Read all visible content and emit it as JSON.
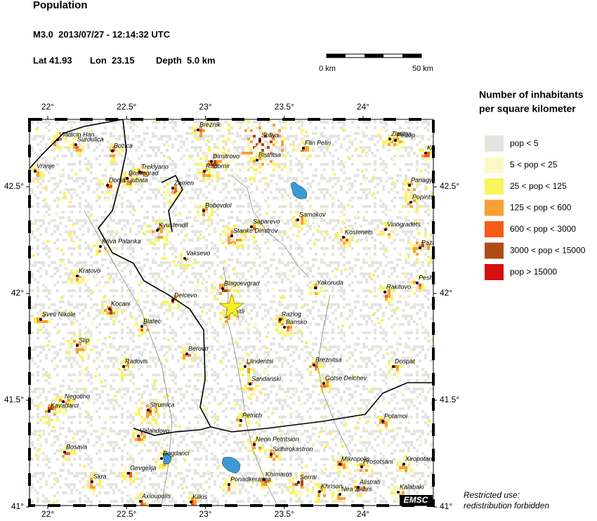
{
  "header": {
    "title": "Population",
    "event": "M3.0  2013/07/27 - 12:14:32 UTC",
    "lat": "Lat 41.93",
    "lon": "Lon  23.15",
    "depth": "Depth  5.0 km"
  },
  "scale_bar": {
    "start": "0 km",
    "end": "50 km"
  },
  "map": {
    "lon_ticks": [
      {
        "value": 22,
        "label": "22°"
      },
      {
        "value": 22.5,
        "label": "22.5°"
      },
      {
        "value": 23,
        "label": "23°"
      },
      {
        "value": 23.5,
        "label": "23.5°"
      },
      {
        "value": 24,
        "label": "24°"
      }
    ],
    "lat_ticks": [
      {
        "value": 42.5,
        "label": "42.5°"
      },
      {
        "value": 42,
        "label": "42°"
      },
      {
        "value": 41.5,
        "label": "41.5°"
      },
      {
        "value": 41,
        "label": "41°"
      }
    ],
    "cities": [
      "Vladicin Han",
      "Surdulica",
      "Bozica",
      "Vranje",
      "Treklyano",
      "Bosilegrad",
      "Donja Ljubata",
      "Zemen",
      "Breznik",
      "Sofiya",
      "Flin Pelin",
      "Zlatitsa",
      "Pirdop",
      "Koprivshtitsa",
      "Dimitrovo",
      "Radomir",
      "Bistritsa",
      "Panagyurishte",
      "Popintsi",
      "Bobovdol",
      "Samokov",
      "Saparevo",
      "Vinogradets",
      "Kyustendil",
      "Stanke Dimitrov",
      "Kostenets",
      "Pazardzhik",
      "Kriva Palanka",
      "Vaksevo",
      "Kratovo",
      "Peshtera",
      "Blagoevgrad",
      "Yakoruda",
      "Rakitovo",
      "Delcevo",
      "Kocani",
      "Sveti Nikole",
      "Simitli",
      "Razlog",
      "Bansko",
      "Blatec",
      "Stip",
      "Berovo",
      "Breznitsa",
      "Llindentsi",
      "Radovis",
      "Dospat",
      "Sandanski",
      "Gotse Delchev",
      "Negotino",
      "Kavadarci",
      "Strumica",
      "Petrich",
      "Potamoi",
      "Valandovo",
      "Neon Petritsion",
      "Sidhirokastron",
      "Bosava",
      "Bogdanci",
      "Mikropolis",
      "Prosotsani",
      "Xiropotamos",
      "Gevgelija",
      "Skra",
      "Khimaros",
      "Ponadkerasea",
      "Serrai",
      "Alistrati",
      "Khrison",
      "Nea Zikhni",
      "Kalabaki",
      "Axioupolis",
      "Kilkis"
    ],
    "logo": "EMSC"
  },
  "legend": {
    "title": [
      "Number of inhabitants",
      "per square kilometer"
    ],
    "entries": [
      {
        "label": "pop < 5",
        "color": "#e4e4e0"
      },
      {
        "label": "5 < pop < 25",
        "color": "#fbf8c8"
      },
      {
        "label": "25 < pop < 125",
        "color": "#f8f45c"
      },
      {
        "label": "125 < pop < 600",
        "color": "#f8a034"
      },
      {
        "label": "600 < pop < 3000",
        "color": "#f85a18"
      },
      {
        "label": "3000 < pop < 15000",
        "color": "#b04a14"
      },
      {
        "label": "pop > 15000",
        "color": "#d41010"
      }
    ]
  },
  "footer": [
    "Restricted use:",
    "redistribution forbidden"
  ]
}
